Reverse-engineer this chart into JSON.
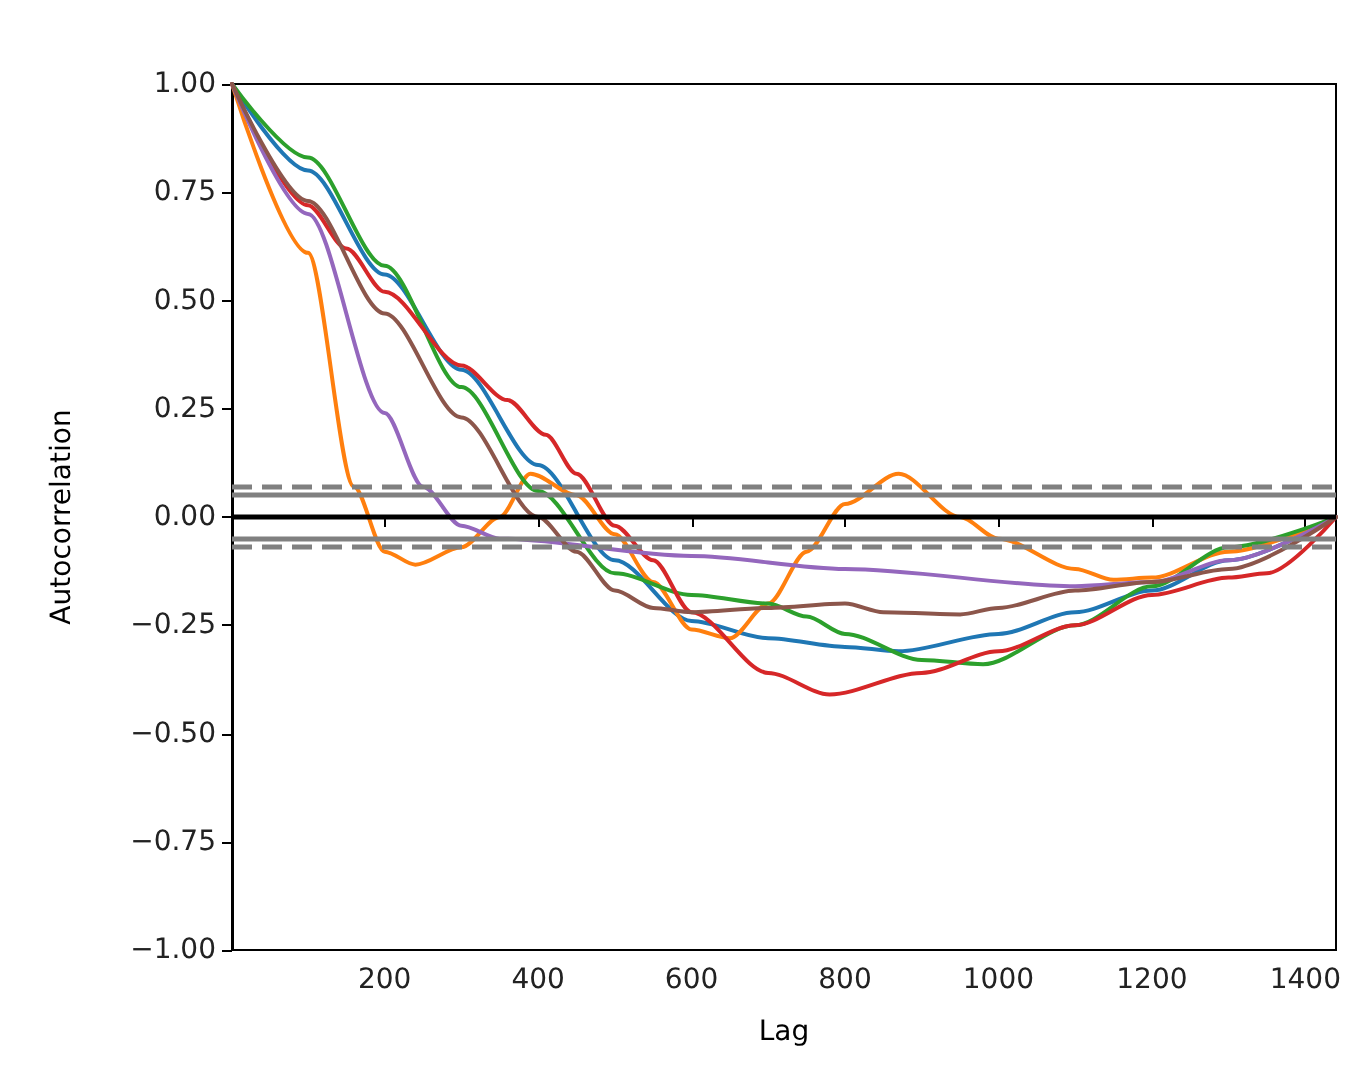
{
  "chart_data": {
    "type": "line",
    "xlabel": "Lag",
    "ylabel": "Autocorrelation",
    "xlim": [
      1,
      1440
    ],
    "xticks": [
      200,
      400,
      600,
      800,
      1000,
      1200,
      1400
    ],
    "ylim": [
      -1,
      1
    ],
    "yticks": [
      {
        "value": -1,
        "label": "−1.00"
      },
      {
        "value": -0.75,
        "label": "−0.75"
      },
      {
        "value": -0.5,
        "label": "−0.50"
      },
      {
        "value": -0.25,
        "label": "−0.25"
      },
      {
        "value": 0,
        "label": "0.00"
      },
      {
        "value": 0.25,
        "label": "0.25"
      },
      {
        "value": 0.5,
        "label": "0.50"
      },
      {
        "value": 0.75,
        "label": "0.75"
      },
      {
        "value": 1,
        "label": "1.00"
      }
    ],
    "grid": false,
    "marker": "none",
    "line_style": "solid",
    "ref_lines": [
      {
        "axis": "y",
        "value": 0.068,
        "color": "#808080",
        "line_style": "dashed"
      },
      {
        "axis": "y",
        "value": 0.052,
        "color": "#808080",
        "line_style": "solid"
      },
      {
        "axis": "y",
        "value": 0,
        "color": "#000000",
        "line_style": "solid"
      },
      {
        "axis": "y",
        "value": -0.052,
        "color": "#808080",
        "line_style": "solid"
      },
      {
        "axis": "y",
        "value": -0.068,
        "color": "#808080",
        "line_style": "dashed"
      }
    ],
    "series": [
      {
        "color": "#1f77b4",
        "x": [
          1,
          100,
          200,
          300,
          400,
          500,
          600,
          700,
          800,
          870,
          1000,
          1100,
          1200,
          1300,
          1440
        ],
        "values": [
          1,
          0.8,
          0.56,
          0.34,
          0.12,
          -0.1,
          -0.24,
          -0.28,
          -0.3,
          -0.31,
          -0.27,
          -0.22,
          -0.17,
          -0.1,
          0
        ]
      },
      {
        "color": "#ff7f0e",
        "x": [
          1,
          100,
          160,
          200,
          240,
          300,
          350,
          390,
          450,
          500,
          550,
          600,
          650,
          700,
          750,
          800,
          870,
          950,
          1000,
          1100,
          1150,
          1200,
          1300,
          1440
        ],
        "values": [
          1,
          0.61,
          0.07,
          -0.08,
          -0.11,
          -0.07,
          0,
          0.1,
          0.05,
          -0.04,
          -0.15,
          -0.26,
          -0.28,
          -0.2,
          -0.08,
          0.03,
          0.1,
          0,
          -0.05,
          -0.12,
          -0.145,
          -0.14,
          -0.08,
          0
        ]
      },
      {
        "color": "#2ca02c",
        "x": [
          1,
          100,
          200,
          300,
          400,
          500,
          600,
          700,
          750,
          800,
          900,
          980,
          1100,
          1200,
          1300,
          1440
        ],
        "values": [
          1,
          0.83,
          0.58,
          0.3,
          0.06,
          -0.13,
          -0.18,
          -0.2,
          -0.23,
          -0.27,
          -0.33,
          -0.34,
          -0.25,
          -0.16,
          -0.07,
          0
        ]
      },
      {
        "color": "#d62728",
        "x": [
          1,
          100,
          150,
          200,
          300,
          360,
          410,
          450,
          500,
          550,
          600,
          700,
          780,
          900,
          1000,
          1100,
          1200,
          1300,
          1350,
          1440
        ],
        "values": [
          1,
          0.72,
          0.62,
          0.52,
          0.35,
          0.27,
          0.19,
          0.1,
          -0.02,
          -0.1,
          -0.22,
          -0.36,
          -0.41,
          -0.36,
          -0.31,
          -0.25,
          -0.18,
          -0.14,
          -0.13,
          0
        ]
      },
      {
        "color": "#9467bd",
        "x": [
          1,
          100,
          200,
          250,
          300,
          350,
          600,
          800,
          1100,
          1200,
          1300,
          1440
        ],
        "values": [
          1,
          0.7,
          0.24,
          0.07,
          -0.02,
          -0.05,
          -0.09,
          -0.12,
          -0.16,
          -0.15,
          -0.1,
          0
        ]
      },
      {
        "color": "#8c564b",
        "x": [
          1,
          100,
          200,
          300,
          400,
          450,
          500,
          550,
          600,
          700,
          800,
          850,
          950,
          1000,
          1100,
          1200,
          1300,
          1440
        ],
        "values": [
          1,
          0.73,
          0.47,
          0.23,
          0,
          -0.08,
          -0.17,
          -0.21,
          -0.22,
          -0.21,
          -0.2,
          -0.22,
          -0.225,
          -0.21,
          -0.17,
          -0.15,
          -0.12,
          0
        ]
      }
    ]
  }
}
